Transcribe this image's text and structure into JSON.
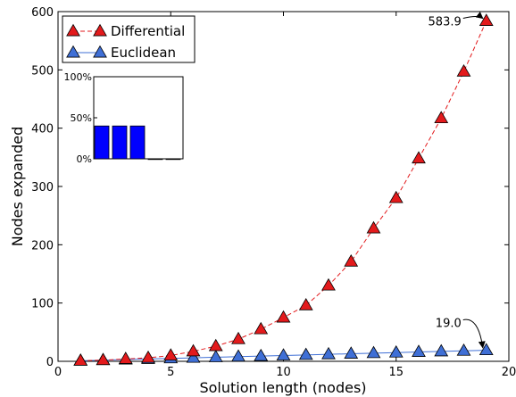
{
  "chart_data": [
    {
      "type": "line",
      "xlabel": "Solution length (nodes)",
      "ylabel": "Nodes expanded",
      "xlim": [
        0,
        20
      ],
      "ylim": [
        0,
        600
      ],
      "xticks": [
        0,
        5,
        10,
        15,
        20
      ],
      "yticks": [
        0,
        100,
        200,
        300,
        400,
        500,
        600
      ],
      "grid": false,
      "legend": "top-left",
      "x": [
        1,
        2,
        3,
        4,
        5,
        6,
        7,
        8,
        9,
        10,
        11,
        12,
        13,
        14,
        15,
        16,
        17,
        18,
        19
      ],
      "series": [
        {
          "name": "Differential",
          "color": "#e31a1c",
          "line_style": "dashed",
          "marker": "triangle",
          "values": [
            1,
            2,
            4,
            6,
            10,
            17,
            26,
            38,
            55,
            75,
            96,
            130,
            171,
            228,
            280,
            348,
            417,
            497,
            583.9
          ]
        },
        {
          "name": "Euclidean",
          "color": "#3f6fd6",
          "line_style": "solid",
          "marker": "triangle",
          "values": [
            1,
            2,
            3,
            4,
            5,
            6,
            7,
            8,
            9,
            10,
            11,
            12,
            13,
            14,
            15,
            16,
            17,
            18,
            19.0
          ]
        }
      ],
      "annotations": [
        {
          "text": "583.9",
          "x": 19,
          "y": 583.9
        },
        {
          "text": "19.0",
          "x": 19,
          "y": 19.0
        }
      ]
    },
    {
      "type": "bar",
      "position": "inset-upper-left",
      "color": "#0000ff",
      "ylim": [
        0,
        100
      ],
      "yticks": [
        "0%",
        "50%",
        "100%"
      ],
      "values": [
        40,
        40,
        40,
        0,
        0
      ]
    }
  ]
}
